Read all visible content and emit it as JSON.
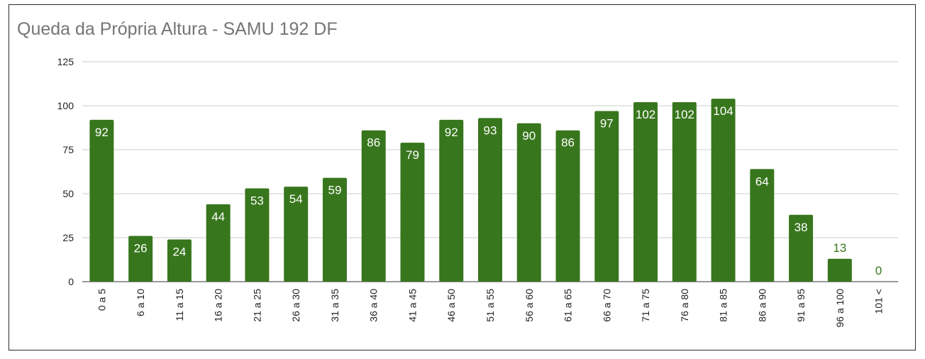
{
  "title": "Queda da Própria Altura - SAMU 192 DF",
  "chart_data": {
    "type": "bar",
    "title": "Queda da Própria Altura - SAMU 192 DF",
    "xlabel": "",
    "ylabel": "",
    "categories": [
      "0 a 5",
      "6 a 10",
      "11 a 15",
      "16 a 20",
      "21 a 25",
      "26 a 30",
      "31 a 35",
      "36 a 40",
      "41 a 45",
      "46 a 50",
      "51 a 55",
      "56 a 60",
      "61 a 65",
      "66 a 70",
      "71 a 75",
      "76 a 80",
      "81 a 85",
      "86 a 90",
      "91 a 95",
      "96 a 100",
      "101 <"
    ],
    "values": [
      92,
      26,
      24,
      44,
      53,
      54,
      59,
      86,
      79,
      92,
      93,
      90,
      86,
      97,
      102,
      102,
      104,
      64,
      38,
      13,
      0
    ],
    "ylim": [
      0,
      125
    ],
    "yticks": [
      0,
      25,
      50,
      75,
      100,
      125
    ],
    "grid": true,
    "legend": "none",
    "colors": {
      "bar": "#38761d",
      "label_inside": "#ffffff",
      "label_outside": "#38761d",
      "grid": "#cccccc",
      "title": "#757575"
    }
  }
}
